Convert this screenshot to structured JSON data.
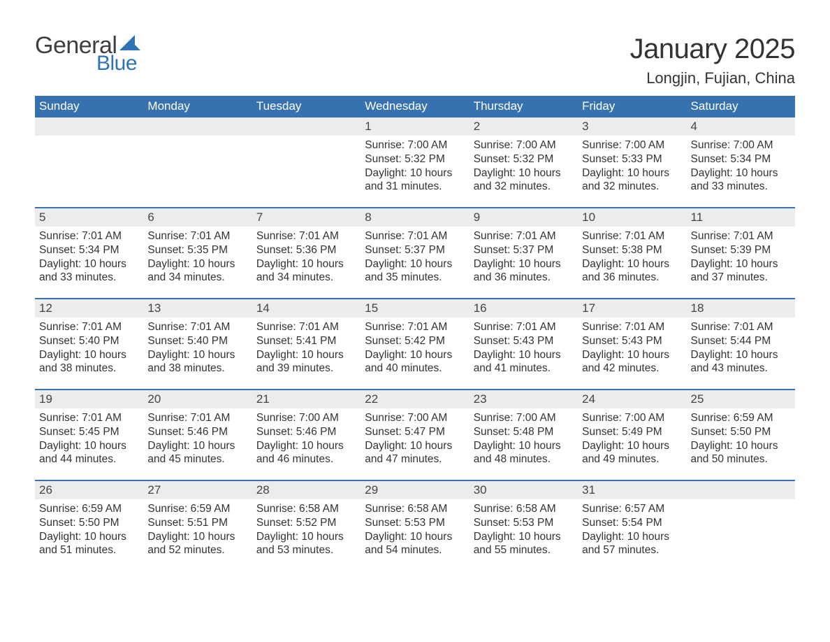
{
  "colors": {
    "header_bg": "#3772b0",
    "header_text": "#ffffff",
    "daynum_bg": "#ececec",
    "daynum_text": "#444444",
    "body_text": "#333333",
    "row_border": "#3772b0",
    "logo_gray": "#3f3f3f",
    "logo_blue": "#2f72b6",
    "page_bg": "#ffffff"
  },
  "typography": {
    "month_title_fontsize": 40,
    "location_fontsize": 22,
    "dow_fontsize": 17,
    "daynum_fontsize": 17,
    "body_fontsize": 15.5,
    "logo_general_fontsize": 34,
    "logo_blue_fontsize": 30,
    "font_family": "Segoe UI"
  },
  "logo": {
    "text_general": "General",
    "text_blue": "Blue",
    "sail_color": "#2f72b6"
  },
  "title": "January 2025",
  "location": "Longjin, Fujian, China",
  "days_of_week": [
    "Sunday",
    "Monday",
    "Tuesday",
    "Wednesday",
    "Thursday",
    "Friday",
    "Saturday"
  ],
  "labels": {
    "sunrise": "Sunrise",
    "sunset": "Sunset",
    "daylight": "Daylight"
  },
  "weeks": [
    [
      null,
      null,
      null,
      {
        "n": "1",
        "sunrise": "7:00 AM",
        "sunset": "5:32 PM",
        "dl1": "10 hours",
        "dl2": "and 31 minutes."
      },
      {
        "n": "2",
        "sunrise": "7:00 AM",
        "sunset": "5:32 PM",
        "dl1": "10 hours",
        "dl2": "and 32 minutes."
      },
      {
        "n": "3",
        "sunrise": "7:00 AM",
        "sunset": "5:33 PM",
        "dl1": "10 hours",
        "dl2": "and 32 minutes."
      },
      {
        "n": "4",
        "sunrise": "7:00 AM",
        "sunset": "5:34 PM",
        "dl1": "10 hours",
        "dl2": "and 33 minutes."
      }
    ],
    [
      {
        "n": "5",
        "sunrise": "7:01 AM",
        "sunset": "5:34 PM",
        "dl1": "10 hours",
        "dl2": "and 33 minutes."
      },
      {
        "n": "6",
        "sunrise": "7:01 AM",
        "sunset": "5:35 PM",
        "dl1": "10 hours",
        "dl2": "and 34 minutes."
      },
      {
        "n": "7",
        "sunrise": "7:01 AM",
        "sunset": "5:36 PM",
        "dl1": "10 hours",
        "dl2": "and 34 minutes."
      },
      {
        "n": "8",
        "sunrise": "7:01 AM",
        "sunset": "5:37 PM",
        "dl1": "10 hours",
        "dl2": "and 35 minutes."
      },
      {
        "n": "9",
        "sunrise": "7:01 AM",
        "sunset": "5:37 PM",
        "dl1": "10 hours",
        "dl2": "and 36 minutes."
      },
      {
        "n": "10",
        "sunrise": "7:01 AM",
        "sunset": "5:38 PM",
        "dl1": "10 hours",
        "dl2": "and 36 minutes."
      },
      {
        "n": "11",
        "sunrise": "7:01 AM",
        "sunset": "5:39 PM",
        "dl1": "10 hours",
        "dl2": "and 37 minutes."
      }
    ],
    [
      {
        "n": "12",
        "sunrise": "7:01 AM",
        "sunset": "5:40 PM",
        "dl1": "10 hours",
        "dl2": "and 38 minutes."
      },
      {
        "n": "13",
        "sunrise": "7:01 AM",
        "sunset": "5:40 PM",
        "dl1": "10 hours",
        "dl2": "and 38 minutes."
      },
      {
        "n": "14",
        "sunrise": "7:01 AM",
        "sunset": "5:41 PM",
        "dl1": "10 hours",
        "dl2": "and 39 minutes."
      },
      {
        "n": "15",
        "sunrise": "7:01 AM",
        "sunset": "5:42 PM",
        "dl1": "10 hours",
        "dl2": "and 40 minutes."
      },
      {
        "n": "16",
        "sunrise": "7:01 AM",
        "sunset": "5:43 PM",
        "dl1": "10 hours",
        "dl2": "and 41 minutes."
      },
      {
        "n": "17",
        "sunrise": "7:01 AM",
        "sunset": "5:43 PM",
        "dl1": "10 hours",
        "dl2": "and 42 minutes."
      },
      {
        "n": "18",
        "sunrise": "7:01 AM",
        "sunset": "5:44 PM",
        "dl1": "10 hours",
        "dl2": "and 43 minutes."
      }
    ],
    [
      {
        "n": "19",
        "sunrise": "7:01 AM",
        "sunset": "5:45 PM",
        "dl1": "10 hours",
        "dl2": "and 44 minutes."
      },
      {
        "n": "20",
        "sunrise": "7:01 AM",
        "sunset": "5:46 PM",
        "dl1": "10 hours",
        "dl2": "and 45 minutes."
      },
      {
        "n": "21",
        "sunrise": "7:00 AM",
        "sunset": "5:46 PM",
        "dl1": "10 hours",
        "dl2": "and 46 minutes."
      },
      {
        "n": "22",
        "sunrise": "7:00 AM",
        "sunset": "5:47 PM",
        "dl1": "10 hours",
        "dl2": "and 47 minutes."
      },
      {
        "n": "23",
        "sunrise": "7:00 AM",
        "sunset": "5:48 PM",
        "dl1": "10 hours",
        "dl2": "and 48 minutes."
      },
      {
        "n": "24",
        "sunrise": "7:00 AM",
        "sunset": "5:49 PM",
        "dl1": "10 hours",
        "dl2": "and 49 minutes."
      },
      {
        "n": "25",
        "sunrise": "6:59 AM",
        "sunset": "5:50 PM",
        "dl1": "10 hours",
        "dl2": "and 50 minutes."
      }
    ],
    [
      {
        "n": "26",
        "sunrise": "6:59 AM",
        "sunset": "5:50 PM",
        "dl1": "10 hours",
        "dl2": "and 51 minutes."
      },
      {
        "n": "27",
        "sunrise": "6:59 AM",
        "sunset": "5:51 PM",
        "dl1": "10 hours",
        "dl2": "and 52 minutes."
      },
      {
        "n": "28",
        "sunrise": "6:58 AM",
        "sunset": "5:52 PM",
        "dl1": "10 hours",
        "dl2": "and 53 minutes."
      },
      {
        "n": "29",
        "sunrise": "6:58 AM",
        "sunset": "5:53 PM",
        "dl1": "10 hours",
        "dl2": "and 54 minutes."
      },
      {
        "n": "30",
        "sunrise": "6:58 AM",
        "sunset": "5:53 PM",
        "dl1": "10 hours",
        "dl2": "and 55 minutes."
      },
      {
        "n": "31",
        "sunrise": "6:57 AM",
        "sunset": "5:54 PM",
        "dl1": "10 hours",
        "dl2": "and 57 minutes."
      },
      null
    ]
  ]
}
